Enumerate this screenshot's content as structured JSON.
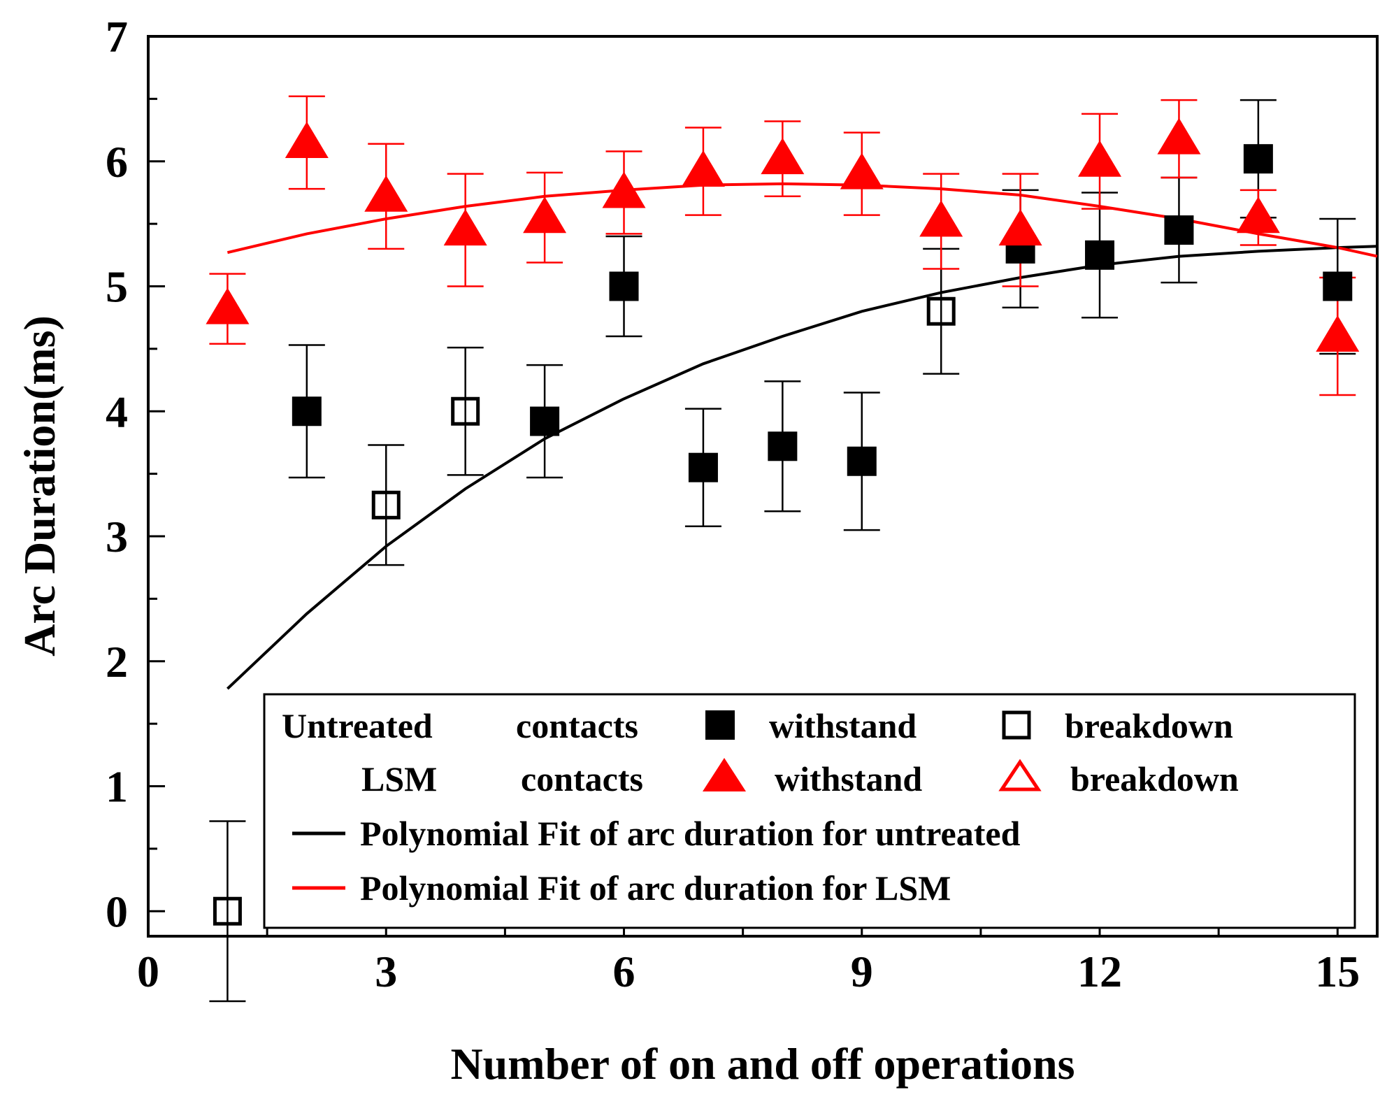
{
  "chart_data": {
    "type": "scatter",
    "xlabel": "Number of on and off operations",
    "ylabel": "Arc Duration(ms)",
    "xlim": [
      0,
      15.5
    ],
    "ylim": [
      -0.2,
      7
    ],
    "x_ticks": [
      0,
      3,
      6,
      9,
      12,
      15
    ],
    "x_tick_labels": [
      "0",
      "3",
      "6",
      "9",
      "12",
      "15"
    ],
    "x_minor_ticks": [
      1.5,
      4.5,
      7.5,
      10.5,
      13.5
    ],
    "y_ticks": [
      0,
      1,
      2,
      3,
      4,
      5,
      6,
      7
    ],
    "y_tick_labels": [
      "0",
      "1",
      "2",
      "3",
      "4",
      "5",
      "6",
      "7"
    ],
    "y_minor_ticks": [
      0.5,
      1.5,
      2.5,
      3.5,
      4.5,
      5.5,
      6.5
    ],
    "grid": false,
    "legend_position": "bottom-right",
    "colors": {
      "untreated": "#000000",
      "lsm": "#ff0000"
    },
    "series": [
      {
        "name": "Untreated contacts",
        "color": "#000000",
        "marker": "square",
        "points": [
          {
            "x": 1,
            "y": 0.0,
            "err": 0.72,
            "state": "breakdown"
          },
          {
            "x": 2,
            "y": 4.0,
            "err": 0.53,
            "state": "withstand"
          },
          {
            "x": 3,
            "y": 3.25,
            "err": 0.48,
            "state": "breakdown"
          },
          {
            "x": 4,
            "y": 4.0,
            "err": 0.51,
            "state": "breakdown"
          },
          {
            "x": 5,
            "y": 3.92,
            "err": 0.45,
            "state": "withstand"
          },
          {
            "x": 6,
            "y": 5.0,
            "err": 0.4,
            "state": "withstand"
          },
          {
            "x": 7,
            "y": 3.55,
            "err": 0.47,
            "state": "withstand"
          },
          {
            "x": 8,
            "y": 3.72,
            "err": 0.52,
            "state": "withstand"
          },
          {
            "x": 9,
            "y": 3.6,
            "err": 0.55,
            "state": "withstand"
          },
          {
            "x": 10,
            "y": 4.8,
            "err": 0.5,
            "state": "breakdown"
          },
          {
            "x": 11,
            "y": 5.3,
            "err": 0.47,
            "state": "withstand"
          },
          {
            "x": 12,
            "y": 5.25,
            "err": 0.5,
            "state": "withstand"
          },
          {
            "x": 13,
            "y": 5.45,
            "err": 0.42,
            "state": "withstand"
          },
          {
            "x": 14,
            "y": 6.02,
            "err": 0.47,
            "state": "withstand"
          },
          {
            "x": 15,
            "y": 5.0,
            "err": 0.54,
            "state": "withstand"
          }
        ],
        "fit": {
          "name": "Polynomial Fit of arc duration for untreated",
          "x": [
            1,
            2,
            3,
            4,
            5,
            6,
            7,
            8,
            9,
            10,
            11,
            12,
            13,
            14,
            15,
            15.5
          ],
          "y": [
            1.78,
            2.38,
            2.92,
            3.38,
            3.78,
            4.1,
            4.38,
            4.6,
            4.8,
            4.95,
            5.07,
            5.17,
            5.24,
            5.28,
            5.31,
            5.32
          ]
        }
      },
      {
        "name": "LSM contacts",
        "color": "#ff0000",
        "marker": "triangle",
        "points": [
          {
            "x": 1,
            "y": 4.82,
            "err": 0.28,
            "state": "withstand"
          },
          {
            "x": 2,
            "y": 6.15,
            "err": 0.37,
            "state": "withstand"
          },
          {
            "x": 3,
            "y": 5.72,
            "err": 0.42,
            "state": "withstand"
          },
          {
            "x": 4,
            "y": 5.45,
            "err": 0.45,
            "state": "withstand"
          },
          {
            "x": 5,
            "y": 5.55,
            "err": 0.36,
            "state": "withstand"
          },
          {
            "x": 6,
            "y": 5.75,
            "err": 0.33,
            "state": "withstand"
          },
          {
            "x": 7,
            "y": 5.92,
            "err": 0.35,
            "state": "withstand"
          },
          {
            "x": 8,
            "y": 6.02,
            "err": 0.3,
            "state": "withstand"
          },
          {
            "x": 9,
            "y": 5.9,
            "err": 0.33,
            "state": "withstand"
          },
          {
            "x": 10,
            "y": 5.52,
            "err": 0.38,
            "state": "withstand"
          },
          {
            "x": 11,
            "y": 5.45,
            "err": 0.45,
            "state": "withstand"
          },
          {
            "x": 12,
            "y": 6.0,
            "err": 0.38,
            "state": "withstand"
          },
          {
            "x": 13,
            "y": 6.18,
            "err": 0.31,
            "state": "withstand"
          },
          {
            "x": 14,
            "y": 5.55,
            "err": 0.22,
            "state": "withstand"
          },
          {
            "x": 15,
            "y": 4.6,
            "err": 0.47,
            "state": "withstand"
          }
        ],
        "fit": {
          "name": "Polynomial Fit of arc duration for LSM",
          "x": [
            1,
            2,
            3,
            4,
            5,
            6,
            7,
            8,
            9,
            10,
            11,
            12,
            13,
            14,
            15,
            15.5
          ],
          "y": [
            5.27,
            5.42,
            5.54,
            5.64,
            5.72,
            5.77,
            5.81,
            5.82,
            5.81,
            5.78,
            5.73,
            5.64,
            5.54,
            5.42,
            5.31,
            5.24
          ]
        }
      }
    ],
    "legend": {
      "untreated_label": "Untreated",
      "lsm_label": "LSM",
      "contacts_label": "contacts",
      "withstand_label": "withstand",
      "breakdown_label": "breakdown",
      "fit_untreated_label": "Polynomial Fit of arc duration for untreated",
      "fit_lsm_label": "Polynomial Fit of arc duration for LSM"
    }
  }
}
